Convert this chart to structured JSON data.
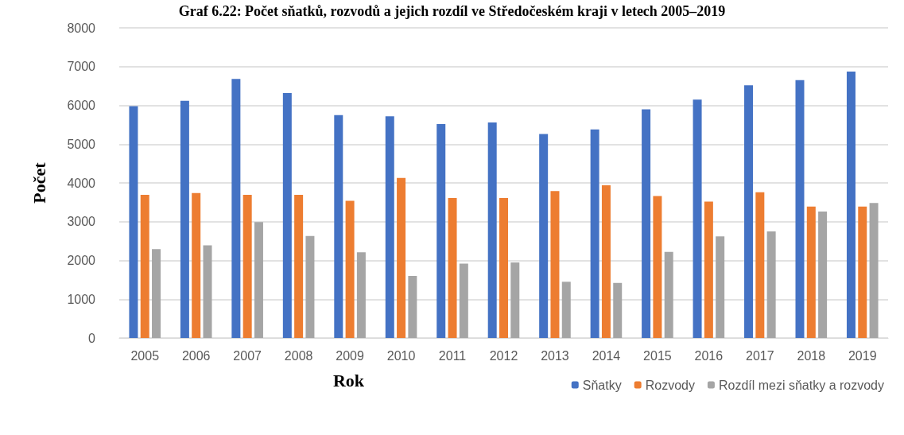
{
  "chart_data": {
    "type": "bar",
    "title": "Graf 6.22: Počet sňatků, rozvodů a jejich rozdíl ve Středočeském kraji v letech 2005–2019",
    "xlabel": "Rok",
    "ylabel": "Počet",
    "categories": [
      "2005",
      "2006",
      "2007",
      "2008",
      "2009",
      "2010",
      "2011",
      "2012",
      "2013",
      "2014",
      "2015",
      "2016",
      "2017",
      "2018",
      "2019"
    ],
    "series": [
      {
        "name": "Sňatky",
        "color": "#4472c4",
        "values": [
          5980,
          6120,
          6680,
          6320,
          5750,
          5720,
          5520,
          5560,
          5260,
          5380,
          5900,
          6150,
          6520,
          6650,
          6870
        ]
      },
      {
        "name": "Rozvody",
        "color": "#ed7d31",
        "values": [
          3690,
          3740,
          3690,
          3690,
          3540,
          4130,
          3610,
          3610,
          3790,
          3940,
          3660,
          3520,
          3760,
          3390,
          3390
        ]
      },
      {
        "name": "Rozdíl mezi sňatky a rozvody",
        "color": "#a5a5a5",
        "values": [
          2290,
          2390,
          2990,
          2630,
          2210,
          1600,
          1920,
          1950,
          1450,
          1420,
          2220,
          2620,
          2750,
          3260,
          3480
        ]
      }
    ],
    "ylim": [
      0,
      8000
    ],
    "yticks": [
      0,
      1000,
      2000,
      3000,
      4000,
      5000,
      6000,
      7000,
      8000
    ],
    "grid": "y",
    "legend": "bottom right"
  }
}
